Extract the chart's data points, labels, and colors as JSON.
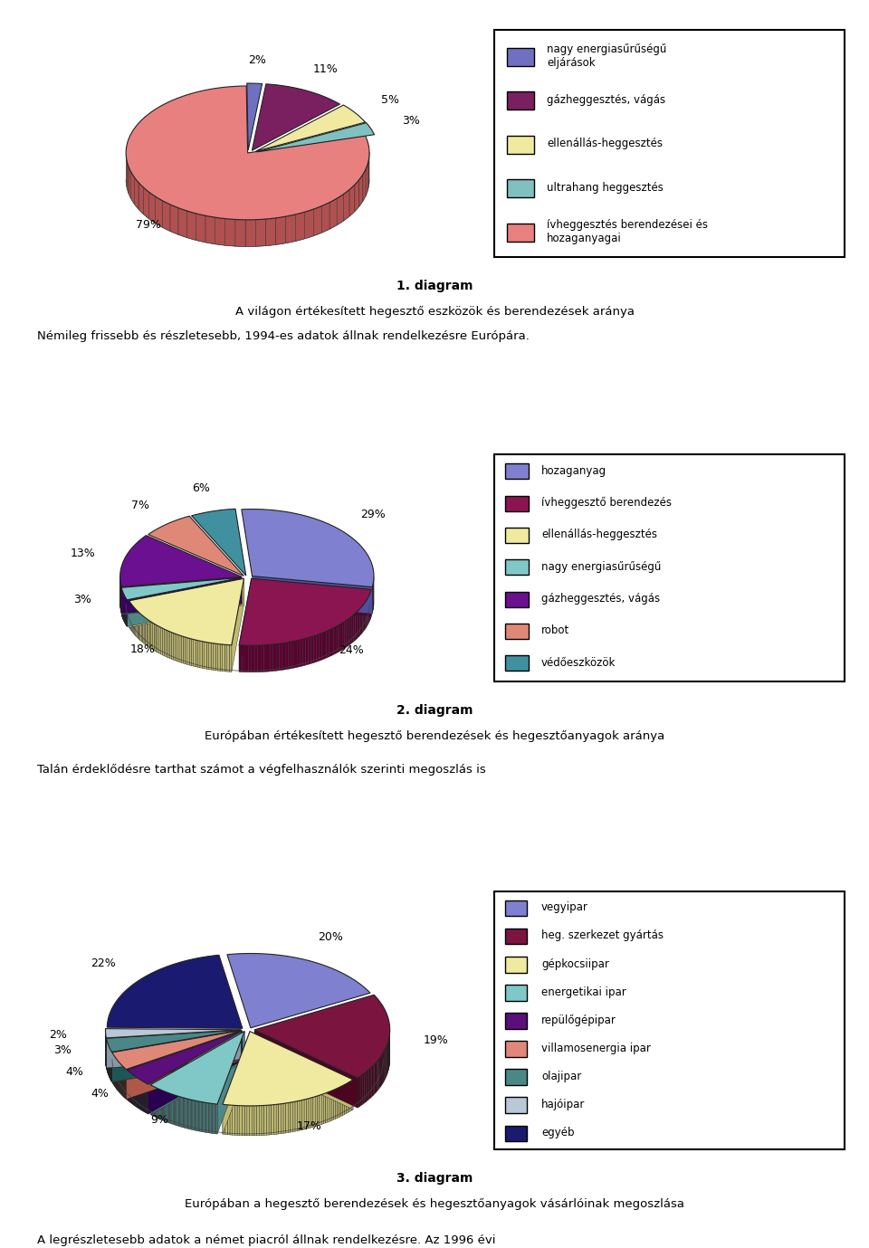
{
  "chart1": {
    "values": [
      79,
      2,
      11,
      5,
      3
    ],
    "colors": [
      "#e88080",
      "#7070c0",
      "#7a2060",
      "#f0eaa0",
      "#80c0c0"
    ],
    "dark_colors": [
      "#b05050",
      "#404090",
      "#501040",
      "#c0ba70",
      "#508080"
    ],
    "labels": [
      "79%",
      "2%",
      "11%",
      "5%",
      "3%"
    ],
    "startangle": 15,
    "explode": [
      0,
      0.08,
      0.08,
      0.08,
      0.08
    ],
    "legend_labels": [
      "nagy energiasűrűségű\neljárások",
      "gázheggesztés, vágás",
      "ellenállás-heggesztés",
      "ultrahang heggesztés",
      "ívheggesztés berendezései és\nhozaganyagai"
    ],
    "legend_colors": [
      "#7070c0",
      "#7a2060",
      "#f0eaa0",
      "#80c0c0",
      "#e88080"
    ]
  },
  "chart2": {
    "values": [
      29,
      24,
      18,
      3,
      13,
      7,
      6
    ],
    "colors": [
      "#8080d0",
      "#8b1550",
      "#f0eaa0",
      "#80c8c8",
      "#6a1090",
      "#e08878",
      "#4090a0"
    ],
    "dark_colors": [
      "#5050a0",
      "#5b0030",
      "#c0ba70",
      "#508888",
      "#3a0060",
      "#b05848",
      "#106070"
    ],
    "labels": [
      "29%",
      "24%",
      "18%",
      "3%",
      "13%",
      "7%",
      "6%"
    ],
    "startangle": 95,
    "explode": [
      0.05,
      0.05,
      0.05,
      0.05,
      0.05,
      0.05,
      0.05
    ],
    "legend_labels": [
      "hozaganyag",
      "ívheggesztő berendezés",
      "ellenállás-heggesztés",
      "nagy energiasűrűségű",
      "gázheggesztés, vágás",
      "robot",
      "védőeszközök"
    ],
    "legend_colors": [
      "#8080d0",
      "#8b1550",
      "#f0eaa0",
      "#80c8c8",
      "#6a1090",
      "#e08878",
      "#4090a0"
    ]
  },
  "chart3": {
    "values": [
      20,
      19,
      17,
      9,
      4,
      4,
      3,
      2,
      22
    ],
    "colors": [
      "#8080d0",
      "#7b1540",
      "#f0eaa0",
      "#80c8c8",
      "#5a0f7a",
      "#e08878",
      "#4a8888",
      "#b8c8d8",
      "#1a1a70"
    ],
    "dark_colors": [
      "#5050a0",
      "#4b0520",
      "#c0ba70",
      "#508888",
      "#2a0050",
      "#b05848",
      "#1a5858",
      "#8898a8",
      "#000040"
    ],
    "labels": [
      "20%",
      "19%",
      "17%",
      "9%",
      "4%",
      "4%",
      "3%",
      "2%",
      "22%"
    ],
    "startangle": 100,
    "explode": [
      0.05,
      0.05,
      0.05,
      0.05,
      0.05,
      0.05,
      0.05,
      0.05,
      0.05
    ],
    "legend_labels": [
      "vegyipar",
      "heg. szerkezet gyártás",
      "gépkocsiipar",
      "energetikai ipar",
      "repülőgépipar",
      "villamosenergia ipar",
      "olajipar",
      "hajóipar",
      "egyéb"
    ],
    "legend_colors": [
      "#8080d0",
      "#7b1540",
      "#f0eaa0",
      "#80c8c8",
      "#5a0f7a",
      "#e08878",
      "#4a8888",
      "#b8c8d8",
      "#1a1a70"
    ]
  }
}
